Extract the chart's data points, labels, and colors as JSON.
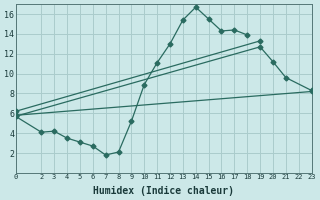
{
  "xlabel": "Humidex (Indice chaleur)",
  "bg_color": "#cce8e8",
  "grid_color": "#aacccc",
  "line_color": "#2a6b60",
  "xlim": [
    0,
    23
  ],
  "ylim": [
    0,
    17
  ],
  "xticks": [
    0,
    2,
    3,
    4,
    5,
    6,
    7,
    8,
    9,
    10,
    11,
    12,
    13,
    14,
    15,
    16,
    17,
    18,
    19,
    20,
    21,
    22,
    23
  ],
  "yticks": [
    2,
    4,
    6,
    8,
    10,
    12,
    14,
    16
  ],
  "line1_x": [
    0,
    2,
    3,
    4,
    5,
    6,
    7,
    8,
    9,
    10,
    11,
    12,
    13,
    14,
    15,
    16,
    17,
    18
  ],
  "line1_y": [
    5.7,
    4.1,
    4.2,
    3.5,
    3.1,
    2.7,
    1.8,
    2.1,
    5.2,
    8.9,
    11.1,
    13.0,
    15.4,
    16.7,
    15.5,
    14.3,
    14.4,
    13.9
  ],
  "line2_x": [
    0,
    19,
    20,
    21,
    23
  ],
  "line2_y": [
    5.7,
    12.7,
    11.2,
    9.6,
    8.3
  ],
  "line3_x": [
    0,
    23
  ],
  "line3_y": [
    5.8,
    8.2
  ],
  "line4_x": [
    0,
    19
  ],
  "line4_y": [
    6.2,
    13.3
  ]
}
